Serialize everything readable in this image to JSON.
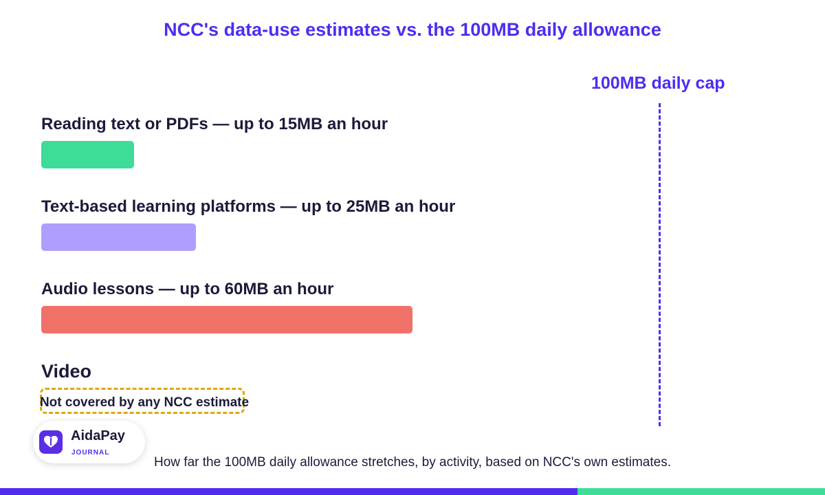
{
  "title": "NCC's data-use estimates vs. the 100MB daily allowance",
  "cap_label": "100MB daily cap",
  "caption": "How far the 100MB daily allowance stretches, by activity, based on NCC's own estimates.",
  "logo": {
    "name": "AidaPay",
    "subtitle": "JOURNAL",
    "icon": "heart-icon"
  },
  "colors": {
    "accent": "#4f2cf0",
    "bar_reading": "#3ddc97",
    "bar_text_platforms": "#b09eff",
    "bar_audio": "#f07167",
    "not_covered_border": "#e0a800",
    "footer_green": "#3ddc97"
  },
  "chart_data": {
    "type": "bar",
    "orientation": "horizontal",
    "unit": "MB per hour",
    "reference_line": {
      "value": 100,
      "label": "100MB daily cap"
    },
    "categories": [
      "Reading text or PDFs — up to 15MB an hour",
      "Text-based learning platforms — up to 25MB an hour",
      "Audio lessons — up to 60MB an hour",
      "Video"
    ],
    "values": [
      15,
      25,
      60,
      null
    ],
    "colors": [
      "#3ddc97",
      "#b09eff",
      "#f07167",
      null
    ],
    "annotations": [
      {
        "category": "Video",
        "text": "Not covered by any NCC estimate"
      }
    ]
  }
}
